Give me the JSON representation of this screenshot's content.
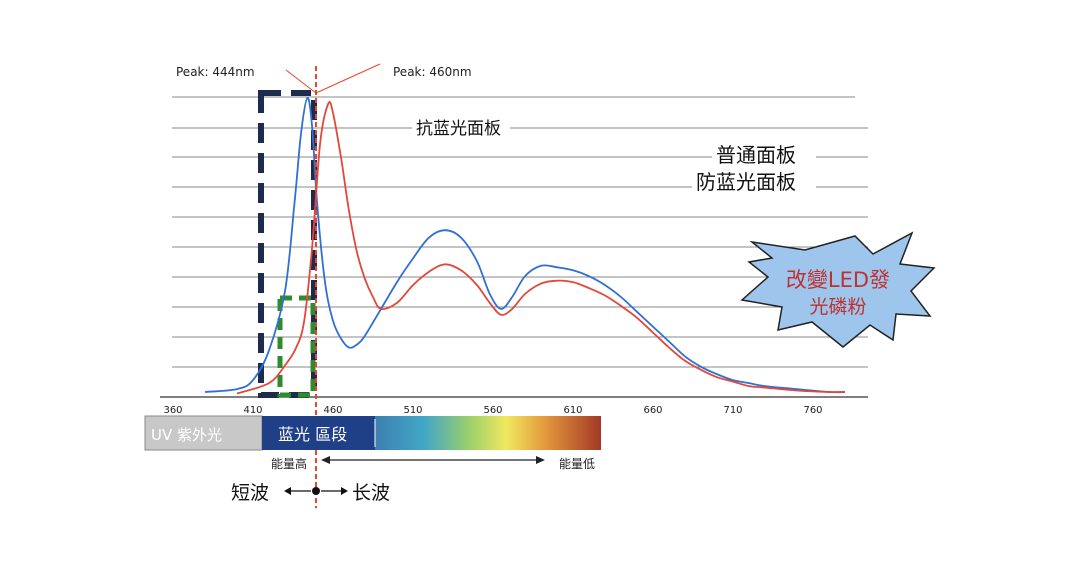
{
  "chart_data": {
    "type": "line",
    "title": "",
    "xlabel": "",
    "ylabel": "",
    "xlim": [
      360,
      790
    ],
    "ylim": [
      0,
      10
    ],
    "x_ticks": [
      360,
      410,
      460,
      510,
      560,
      610,
      660,
      710,
      760
    ],
    "horizontal_grid": true,
    "series": [
      {
        "name": "普通面板",
        "color": "#2f6fd6",
        "points": [
          [
            380,
            0.1
          ],
          [
            400,
            0.2
          ],
          [
            410,
            0.5
          ],
          [
            420,
            1.5
          ],
          [
            430,
            3.5
          ],
          [
            436,
            6.5
          ],
          [
            440,
            8.8
          ],
          [
            444,
            10.0
          ],
          [
            447,
            9.0
          ],
          [
            450,
            6.5
          ],
          [
            455,
            3.8
          ],
          [
            460,
            2.5
          ],
          [
            465,
            1.9
          ],
          [
            470,
            1.6
          ],
          [
            475,
            1.7
          ],
          [
            480,
            2.0
          ],
          [
            490,
            2.9
          ],
          [
            500,
            3.8
          ],
          [
            510,
            4.6
          ],
          [
            520,
            5.3
          ],
          [
            530,
            5.55
          ],
          [
            540,
            5.3
          ],
          [
            550,
            4.5
          ],
          [
            558,
            3.4
          ],
          [
            565,
            2.9
          ],
          [
            572,
            3.3
          ],
          [
            580,
            4.0
          ],
          [
            590,
            4.35
          ],
          [
            600,
            4.3
          ],
          [
            610,
            4.2
          ],
          [
            620,
            4.0
          ],
          [
            630,
            3.7
          ],
          [
            640,
            3.3
          ],
          [
            650,
            2.8
          ],
          [
            660,
            2.3
          ],
          [
            670,
            1.8
          ],
          [
            680,
            1.3
          ],
          [
            690,
            0.95
          ],
          [
            700,
            0.7
          ],
          [
            710,
            0.5
          ],
          [
            720,
            0.4
          ],
          [
            730,
            0.3
          ],
          [
            750,
            0.2
          ],
          [
            770,
            0.1
          ],
          [
            780,
            0.1
          ]
        ]
      },
      {
        "name": "防蓝光面板",
        "color": "#e2483a",
        "points": [
          [
            400,
            0.05
          ],
          [
            420,
            0.4
          ],
          [
            430,
            1.0
          ],
          [
            437,
            1.6
          ],
          [
            442,
            2.5
          ],
          [
            447,
            5.0
          ],
          [
            452,
            8.5
          ],
          [
            457,
            9.8
          ],
          [
            460,
            9.5
          ],
          [
            465,
            8.0
          ],
          [
            470,
            6.2
          ],
          [
            475,
            4.8
          ],
          [
            480,
            3.9
          ],
          [
            485,
            3.3
          ],
          [
            490,
            2.9
          ],
          [
            500,
            3.1
          ],
          [
            510,
            3.7
          ],
          [
            520,
            4.15
          ],
          [
            530,
            4.4
          ],
          [
            540,
            4.2
          ],
          [
            550,
            3.7
          ],
          [
            558,
            3.1
          ],
          [
            565,
            2.7
          ],
          [
            572,
            2.9
          ],
          [
            580,
            3.4
          ],
          [
            590,
            3.75
          ],
          [
            600,
            3.85
          ],
          [
            610,
            3.8
          ],
          [
            620,
            3.6
          ],
          [
            630,
            3.35
          ],
          [
            640,
            3.0
          ],
          [
            650,
            2.6
          ],
          [
            660,
            2.1
          ],
          [
            670,
            1.6
          ],
          [
            680,
            1.15
          ],
          [
            690,
            0.85
          ],
          [
            700,
            0.6
          ],
          [
            710,
            0.45
          ],
          [
            720,
            0.3
          ],
          [
            730,
            0.25
          ],
          [
            750,
            0.15
          ],
          [
            770,
            0.1
          ],
          [
            780,
            0.1
          ]
        ]
      }
    ],
    "annotations": {
      "peak_left": "Peak: 444nm",
      "peak_right": "Peak: 460nm",
      "anti_blue_panel": "抗蓝光面板",
      "normal_panel": "普通面板",
      "anti_blue_panel_2": "防蓝光面板",
      "starburst_line1": "改變LED發",
      "starburst_line2": "光磷粉"
    },
    "band": {
      "uv_label": "UV 紫外光",
      "blue_label": "蓝光 區段",
      "energy_high": "能量高",
      "energy_low": "能量低"
    },
    "wavelength": {
      "short_label": "短波",
      "long_label": "长波"
    }
  },
  "colors": {
    "grid": "#8a8a8a",
    "blue_box": "#1d2b4f",
    "green_box": "#2e8b2e",
    "center_line": "#e0482f",
    "starburst_fill": "#9ec6ec",
    "starburst_text": "#c03030"
  }
}
